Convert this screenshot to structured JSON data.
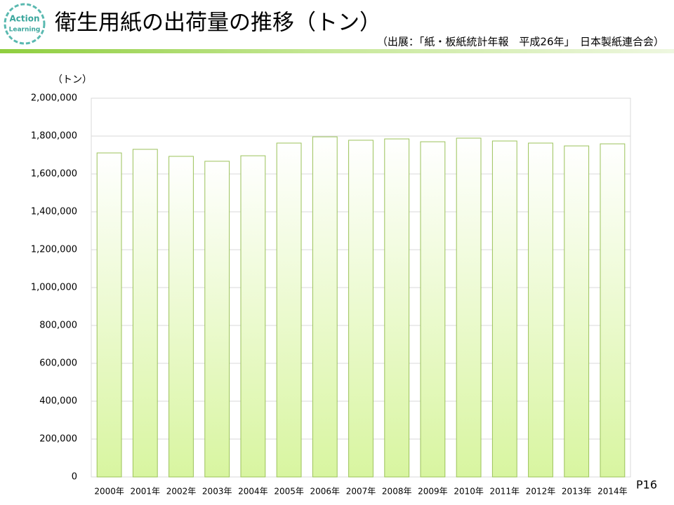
{
  "logo": [
    "Action",
    "Learning"
  ],
  "source": "（出展：「紙・板紙統計年報　平成26年」　日本製紙連合会）",
  "page_number": "P16",
  "chart_data": {
    "type": "bar",
    "title": "衛生用紙の出荷量の推移（トン）",
    "y_label": "（トン）",
    "categories": [
      "2000年",
      "2001年",
      "2002年",
      "2003年",
      "2004年",
      "2005年",
      "2006年",
      "2007年",
      "2008年",
      "2009年",
      "2010年",
      "2011年",
      "2012年",
      "2013年",
      "2014年"
    ],
    "values": [
      1711000,
      1730000,
      1693000,
      1667000,
      1696000,
      1763000,
      1796000,
      1778000,
      1785000,
      1770000,
      1789000,
      1774000,
      1763000,
      1748000,
      1759000
    ],
    "color": "#d8f5a0",
    "ylim": [
      0,
      2000000
    ],
    "yticks": [
      0,
      {
        "value": 200000,
        "label": "200,000"
      },
      {
        "value": 400000,
        "label": "400,000"
      },
      {
        "value": 600000,
        "label": "600,000"
      },
      {
        "value": 800000,
        "label": "800,000"
      },
      {
        "value": 1000000,
        "label": "1,000,000"
      },
      {
        "value": 1200000,
        "label": "1,200,000"
      },
      {
        "value": 1400000,
        "label": "1,400,000"
      },
      {
        "value": 1600000,
        "label": "1,600,000"
      },
      {
        "value": 1800000,
        "label": "1,800,000"
      },
      {
        "value": 2000000,
        "label": "2,000,000"
      }
    ],
    "grid": true
  }
}
